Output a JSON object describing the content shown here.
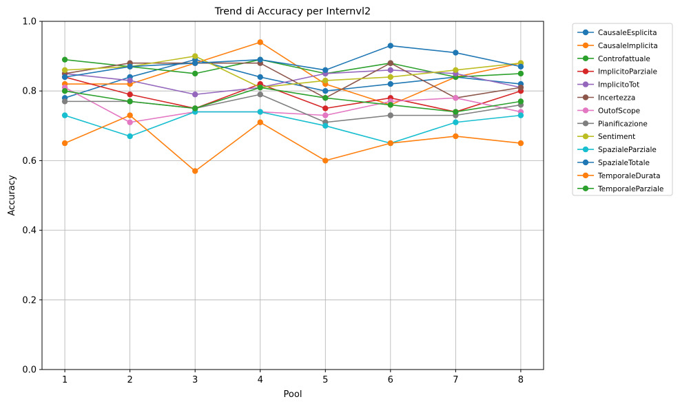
{
  "chart_data": {
    "type": "line",
    "title": "Trend di Accuracy per Internvl2",
    "xlabel": "Pool",
    "ylabel": "Accuracy",
    "x": [
      1,
      2,
      3,
      4,
      5,
      6,
      7,
      8
    ],
    "xlim": [
      0.65,
      8.35
    ],
    "ylim": [
      0.0,
      1.0
    ],
    "yticks": [
      "0.0",
      "0.2",
      "0.4",
      "0.6",
      "0.8",
      "1.0"
    ],
    "xticks": [
      "1",
      "2",
      "3",
      "4",
      "5",
      "6",
      "7",
      "8"
    ],
    "grid": true,
    "legend_position": "outside-top-right",
    "series": [
      {
        "name": "CausaleEsplicita",
        "color": "#1f77b4",
        "values": [
          0.78,
          0.84,
          0.89,
          0.84,
          0.8,
          0.82,
          0.84,
          0.82
        ]
      },
      {
        "name": "CausaleImplicita",
        "color": "#ff7f0e",
        "values": [
          0.82,
          0.82,
          0.88,
          0.94,
          0.82,
          0.76,
          0.84,
          0.88
        ]
      },
      {
        "name": "Controfattuale",
        "color": "#2ca02c",
        "values": [
          0.89,
          0.87,
          0.85,
          0.89,
          0.85,
          0.88,
          0.84,
          0.85
        ]
      },
      {
        "name": "ImplicitoParziale",
        "color": "#d62728",
        "values": [
          0.84,
          0.79,
          0.75,
          0.82,
          0.75,
          0.78,
          0.74,
          0.8
        ]
      },
      {
        "name": "ImplicitoTot",
        "color": "#9467bd",
        "values": [
          0.85,
          0.83,
          0.79,
          0.81,
          0.85,
          0.86,
          0.85,
          0.81
        ]
      },
      {
        "name": "Incertezza",
        "color": "#8c564b",
        "values": [
          0.85,
          0.88,
          0.88,
          0.88,
          0.78,
          0.88,
          0.78,
          0.81
        ]
      },
      {
        "name": "OutofScope",
        "color": "#e377c2",
        "values": [
          0.81,
          0.71,
          0.74,
          0.74,
          0.73,
          0.77,
          0.78,
          0.74
        ]
      },
      {
        "name": "Pianificazione",
        "color": "#7f7f7f",
        "values": [
          0.77,
          0.77,
          0.75,
          0.79,
          0.71,
          0.73,
          0.73,
          0.76
        ]
      },
      {
        "name": "Sentiment",
        "color": "#bcbd22",
        "values": [
          0.86,
          0.87,
          0.9,
          0.81,
          0.83,
          0.84,
          0.86,
          0.88
        ]
      },
      {
        "name": "SpazialeParziale",
        "color": "#17becf",
        "values": [
          0.73,
          0.67,
          0.74,
          0.74,
          0.7,
          0.65,
          0.71,
          0.73
        ]
      },
      {
        "name": "SpazialeTotale",
        "color": "#1f77b4",
        "values": [
          0.84,
          0.87,
          0.88,
          0.89,
          0.86,
          0.93,
          0.91,
          0.87
        ]
      },
      {
        "name": "TemporaleDurata",
        "color": "#ff7f0e",
        "values": [
          0.65,
          0.73,
          0.57,
          0.71,
          0.6,
          0.65,
          0.67,
          0.65
        ]
      },
      {
        "name": "TemporaleParziale",
        "color": "#2ca02c",
        "values": [
          0.8,
          0.77,
          0.75,
          0.81,
          0.78,
          0.76,
          0.74,
          0.77
        ]
      }
    ]
  }
}
